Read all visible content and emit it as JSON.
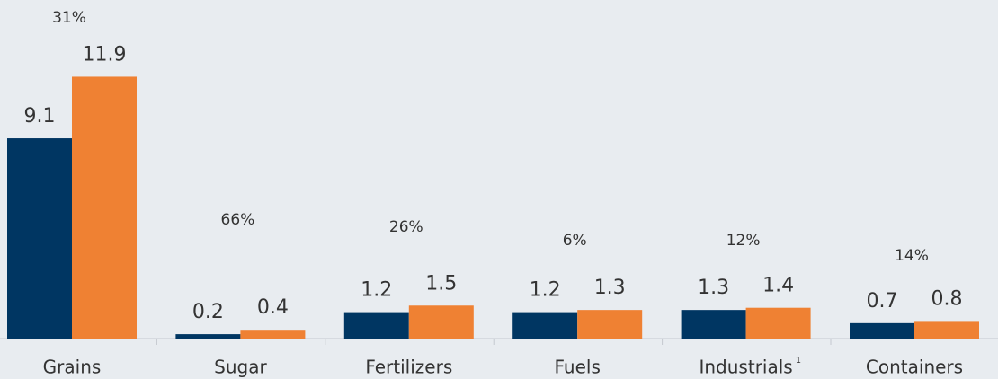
{
  "chart_data": {
    "type": "bar",
    "categories": [
      "Grains",
      "Sugar",
      "Fertilizers",
      "Fuels",
      "Industrials",
      "Containers"
    ],
    "category_notes": [
      null,
      null,
      null,
      null,
      "1",
      null
    ],
    "series": [
      {
        "color": "#003662",
        "values": [
          9.1,
          0.2,
          1.2,
          1.2,
          1.3,
          0.7
        ]
      },
      {
        "color": "#ef8133",
        "values": [
          11.9,
          0.4,
          1.5,
          1.3,
          1.4,
          0.8
        ]
      }
    ],
    "changes": {
      "values": [
        31,
        66,
        26,
        6,
        12,
        14
      ],
      "value_labels": [
        "31%",
        "66%",
        "26%",
        "6%",
        "12%",
        "14%"
      ]
    }
  }
}
